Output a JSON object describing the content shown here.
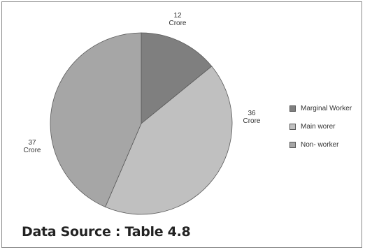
{
  "chart_data": {
    "type": "pie",
    "title": "",
    "slices": [
      {
        "name": "Marginal Worker",
        "value": 12,
        "label_value": "12",
        "label_unit": "Crore",
        "color": "#7f7f7f"
      },
      {
        "name": "Main worer",
        "value": 36,
        "label_value": "36",
        "label_unit": "Crore",
        "color": "#c0c0c0"
      },
      {
        "name": "Non- worker",
        "value": 37,
        "label_value": "37",
        "label_unit": "Crore",
        "color": "#a6a6a6"
      }
    ],
    "legend_position": "right"
  },
  "legend": {
    "items": [
      {
        "label": "Marginal Worker",
        "color": "#7f7f7f"
      },
      {
        "label": "Main worer",
        "color": "#c0c0c0"
      },
      {
        "label": "Non- worker",
        "color": "#a6a6a6"
      }
    ]
  },
  "source_text": "Data Source : Table 4.8"
}
